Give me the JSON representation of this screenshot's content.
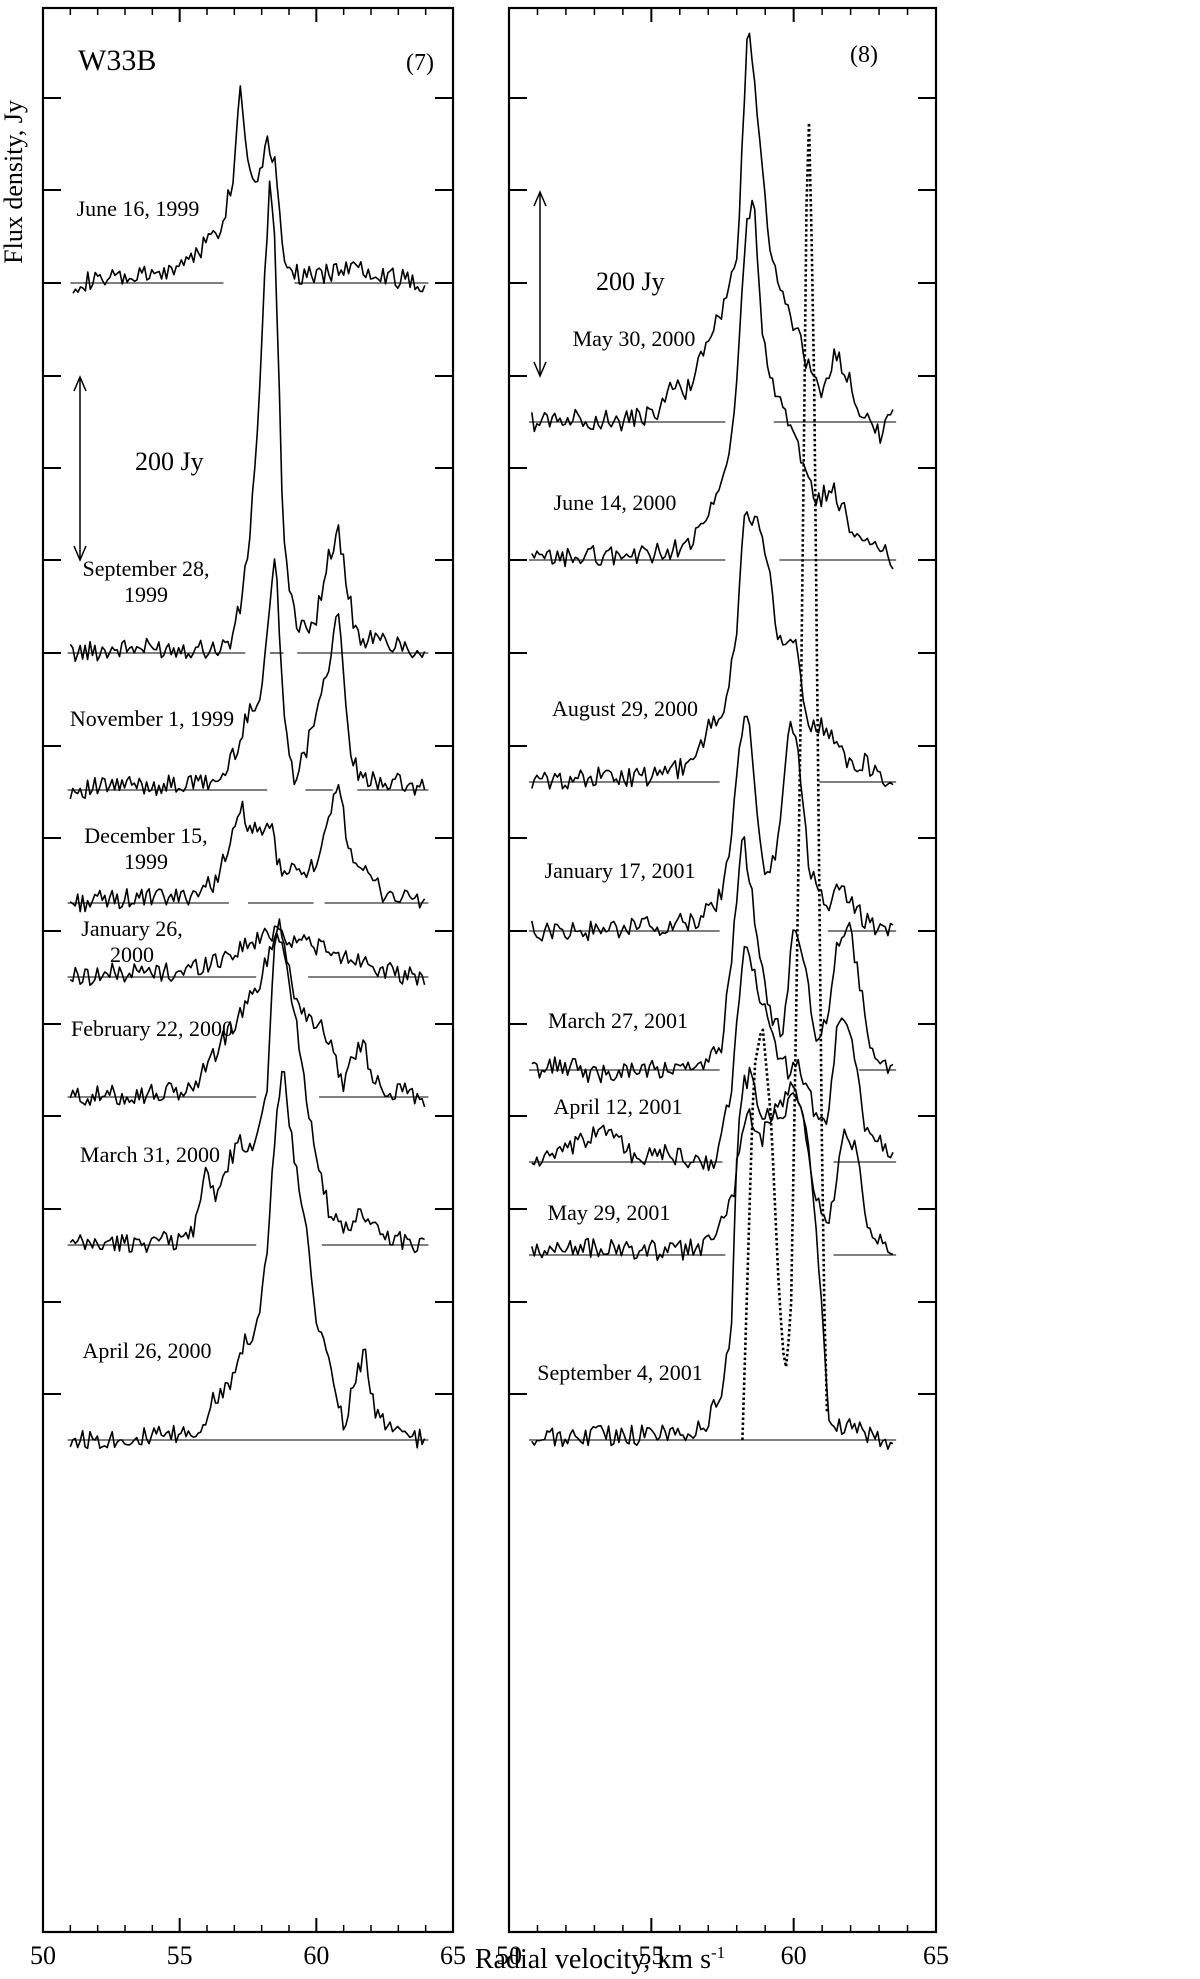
{
  "figure": {
    "ylabel": "Flux density, Jy",
    "xlabel_main": "Radial velocity, km s",
    "xlabel_sup": "-1"
  },
  "chart_data": [
    {
      "type": "line",
      "panel_label": "(7)",
      "source_label": "W33B",
      "scale_bar_label": "200 Jy",
      "scale_bar_jy": 200,
      "xlim": [
        50,
        65
      ],
      "xticks": [
        50,
        55,
        60,
        65
      ],
      "xlabel": "Radial velocity, km s-1",
      "ylabel": "Flux density, Jy",
      "series": [
        {
          "name": "June 16, 1999",
          "x": [
            51.1,
            53,
            54.5,
            55.5,
            56.5,
            57.0,
            57.2,
            57.5,
            57.8,
            58.2,
            58.5,
            58.8,
            59.3,
            60,
            61,
            62,
            63,
            64.0
          ],
          "y": [
            0,
            5,
            10,
            30,
            60,
            120,
            220,
            130,
            110,
            155,
            130,
            30,
            10,
            5,
            18,
            15,
            5,
            0
          ]
        },
        {
          "name": "September 28, 1999",
          "x": [
            51.0,
            53,
            55,
            56.5,
            56.9,
            57.3,
            57.6,
            57.9,
            58.1,
            58.3,
            58.5,
            58.8,
            59.3,
            60.0,
            60.5,
            60.8,
            61.2,
            61.5,
            62,
            63,
            64.0
          ],
          "y": [
            0,
            5,
            5,
            5,
            15,
            60,
            140,
            270,
            400,
            510,
            430,
            120,
            20,
            40,
            110,
            130,
            60,
            15,
            15,
            10,
            0
          ]
        },
        {
          "name": "November 1, 1999",
          "x": [
            51.0,
            53,
            55,
            56.5,
            57.0,
            57.5,
            58.0,
            58.3,
            58.5,
            58.8,
            59.2,
            59.6,
            60.0,
            60.4,
            60.8,
            61.2,
            61.6,
            62.5,
            64.0
          ],
          "y": [
            0,
            5,
            5,
            10,
            40,
            80,
            110,
            200,
            260,
            80,
            15,
            40,
            90,
            130,
            190,
            50,
            10,
            10,
            0
          ]
        },
        {
          "name": "December 15, 1999",
          "x": [
            51.0,
            53,
            55,
            56.2,
            56.8,
            57.3,
            57.6,
            58.0,
            58.3,
            58.6,
            59.0,
            59.5,
            60.0,
            60.5,
            60.8,
            61.2,
            61.8,
            62.5,
            63.5,
            64.0
          ],
          "y": [
            0,
            5,
            5,
            20,
            60,
            100,
            80,
            70,
            90,
            40,
            30,
            40,
            35,
            90,
            130,
            60,
            30,
            10,
            5,
            0
          ]
        },
        {
          "name": "January 26, 2000",
          "x": [
            51.0,
            53,
            55,
            56.5,
            57.5,
            58.2,
            58.6,
            59.0,
            59.5,
            60.0,
            60.5,
            61.0,
            61.6,
            62.0,
            63.0,
            64.0
          ],
          "y": [
            0,
            5,
            5,
            20,
            35,
            45,
            55,
            40,
            40,
            35,
            25,
            20,
            20,
            15,
            0,
            0
          ]
        },
        {
          "name": "February 22, 2000",
          "x": [
            51.0,
            53,
            55,
            55.5,
            56.0,
            57.0,
            57.5,
            58.0,
            58.3,
            58.7,
            59.0,
            59.3,
            60.0,
            60.5,
            61.0,
            61.3,
            61.7,
            62.0,
            62.5,
            64.0
          ],
          "y": [
            0,
            2,
            5,
            10,
            35,
            80,
            100,
            130,
            160,
            190,
            140,
            100,
            80,
            60,
            15,
            40,
            60,
            25,
            10,
            0
          ]
        },
        {
          "name": "March 31, 2000",
          "x": [
            51.0,
            53,
            55,
            55.5,
            55.9,
            56.3,
            56.8,
            57.2,
            57.6,
            58.2,
            58.5,
            58.8,
            59.2,
            59.6,
            60.0,
            60.5,
            61.0,
            61.5,
            62.0,
            62.5,
            64.0
          ],
          "y": [
            0,
            2,
            5,
            15,
            80,
            50,
            90,
            110,
            100,
            170,
            350,
            320,
            250,
            170,
            100,
            30,
            15,
            30,
            25,
            10,
            0
          ]
        },
        {
          "name": "April 26, 2000",
          "x": [
            51.0,
            53,
            55,
            55.7,
            56.2,
            56.8,
            57.2,
            57.8,
            58.2,
            58.5,
            58.8,
            59.2,
            59.6,
            60.0,
            60.5,
            61.0,
            61.5,
            61.8,
            62.2,
            63.0,
            64.0
          ],
          "y": [
            0,
            2,
            5,
            10,
            40,
            60,
            100,
            120,
            200,
            340,
            400,
            300,
            230,
            130,
            80,
            15,
            80,
            90,
            25,
            5,
            0
          ]
        }
      ]
    },
    {
      "type": "line",
      "panel_label": "(8)",
      "scale_bar_label": "200 Jy",
      "scale_bar_jy": 200,
      "xlim": [
        50,
        65
      ],
      "xticks": [
        50,
        55,
        60,
        65
      ],
      "xlabel": "Radial velocity, km s-1",
      "series": [
        {
          "name": "May 30, 2000",
          "x": [
            50.8,
            52,
            54,
            55.2,
            55.8,
            56.2,
            56.6,
            57.0,
            57.5,
            58.0,
            58.4,
            58.8,
            59.2,
            59.7,
            60.2,
            60.6,
            61.0,
            61.4,
            61.8,
            62.2,
            63.0,
            63.5
          ],
          "y": [
            0,
            5,
            0,
            10,
            40,
            30,
            60,
            90,
            120,
            170,
            440,
            300,
            180,
            130,
            90,
            50,
            30,
            70,
            60,
            20,
            -15,
            5
          ]
        },
        {
          "name": "June 14, 2000",
          "x": [
            50.8,
            53,
            55,
            56.5,
            57.0,
            57.5,
            57.9,
            58.3,
            58.6,
            58.9,
            59.3,
            59.8,
            60.4,
            60.8,
            61.3,
            61.8,
            62.3,
            63.0,
            63.5
          ],
          "y": [
            0,
            5,
            5,
            20,
            50,
            80,
            150,
            350,
            390,
            240,
            180,
            150,
            100,
            60,
            80,
            50,
            20,
            10,
            0
          ]
        },
        {
          "name": "August 29, 2000",
          "x": [
            50.8,
            53,
            55,
            56.5,
            57.0,
            57.5,
            58.0,
            58.3,
            58.7,
            59.0,
            59.5,
            60.0,
            60.2,
            60.5,
            61.0,
            61.4,
            62.0,
            62.5,
            63.0,
            63.5
          ],
          "y": [
            0,
            5,
            5,
            20,
            60,
            70,
            160,
            300,
            280,
            250,
            150,
            150,
            130,
            60,
            60,
            50,
            20,
            20,
            10,
            0
          ]
        },
        {
          "name": "January 17, 2001",
          "x": [
            50.8,
            53,
            55,
            56.5,
            57.0,
            57.5,
            57.8,
            58.1,
            58.4,
            58.7,
            59.1,
            59.5,
            59.9,
            60.2,
            60.5,
            60.8,
            61.3,
            61.7,
            62.0,
            62.5,
            63.0,
            63.5
          ],
          "y": [
            0,
            0,
            5,
            10,
            20,
            40,
            100,
            200,
            240,
            120,
            50,
            110,
            240,
            180,
            80,
            40,
            30,
            50,
            30,
            10,
            0,
            0
          ]
        },
        {
          "name": "March 27, 2001",
          "x": [
            50.8,
            52,
            53,
            54,
            55,
            56,
            57,
            57.5,
            57.9,
            58.2,
            58.5,
            58.8,
            59.2,
            59.6,
            60.0,
            60.4,
            60.8,
            61.2,
            61.5,
            61.9,
            62.3,
            62.7,
            63.5
          ],
          "y": [
            0,
            5,
            -5,
            0,
            0,
            0,
            5,
            30,
            150,
            260,
            200,
            120,
            60,
            40,
            150,
            120,
            30,
            60,
            130,
            160,
            100,
            20,
            0
          ]
        },
        {
          "name": "April 12, 2001",
          "x": [
            50.8,
            52,
            53.5,
            54.5,
            55.5,
            56.5,
            57.3,
            57.8,
            58.3,
            58.8,
            59.3,
            59.8,
            60.1,
            60.4,
            60.8,
            61.2,
            61.5,
            61.9,
            62.5,
            63.5
          ],
          "y": [
            0,
            10,
            40,
            0,
            10,
            0,
            0,
            80,
            240,
            180,
            130,
            100,
            110,
            90,
            50,
            40,
            140,
            160,
            40,
            0
          ]
        },
        {
          "name": "May 29, 2001",
          "x": [
            50.8,
            52,
            54,
            56,
            57,
            57.5,
            57.9,
            58.2,
            58.5,
            58.9,
            59.3,
            59.7,
            60.1,
            60.5,
            60.8,
            61.2,
            61.5,
            61.8,
            62.2,
            62.6,
            63.5
          ],
          "y": [
            0,
            10,
            5,
            5,
            10,
            40,
            70,
            180,
            200,
            150,
            150,
            160,
            170,
            120,
            60,
            20,
            80,
            130,
            110,
            30,
            0
          ]
        },
        {
          "name": "September 4, 2001",
          "x": [
            50.8,
            53,
            55,
            56.5,
            57.0,
            57.5,
            57.8,
            58.0,
            58.4,
            58.8,
            59.2,
            59.6,
            60.0,
            60.3,
            60.6,
            61.0,
            61.2,
            61.5,
            62.0,
            62.5,
            63.5
          ],
          "y": [
            0,
            5,
            5,
            10,
            20,
            60,
            110,
            300,
            360,
            320,
            350,
            370,
            380,
            350,
            300,
            150,
            30,
            10,
            20,
            5,
            0
          ]
        },
        {
          "name": "",
          "x": [
            58.2,
            58.6,
            58.9,
            59.2,
            59.5,
            59.7,
            59.9,
            60.1,
            60.3,
            60.5,
            60.7,
            60.9,
            61.0,
            61.1,
            61.2
          ],
          "y": [
            0,
            400,
            450,
            350,
            150,
            70,
            130,
            480,
            900,
            1480,
            1200,
            600,
            300,
            100,
            0
          ]
        }
      ]
    }
  ]
}
